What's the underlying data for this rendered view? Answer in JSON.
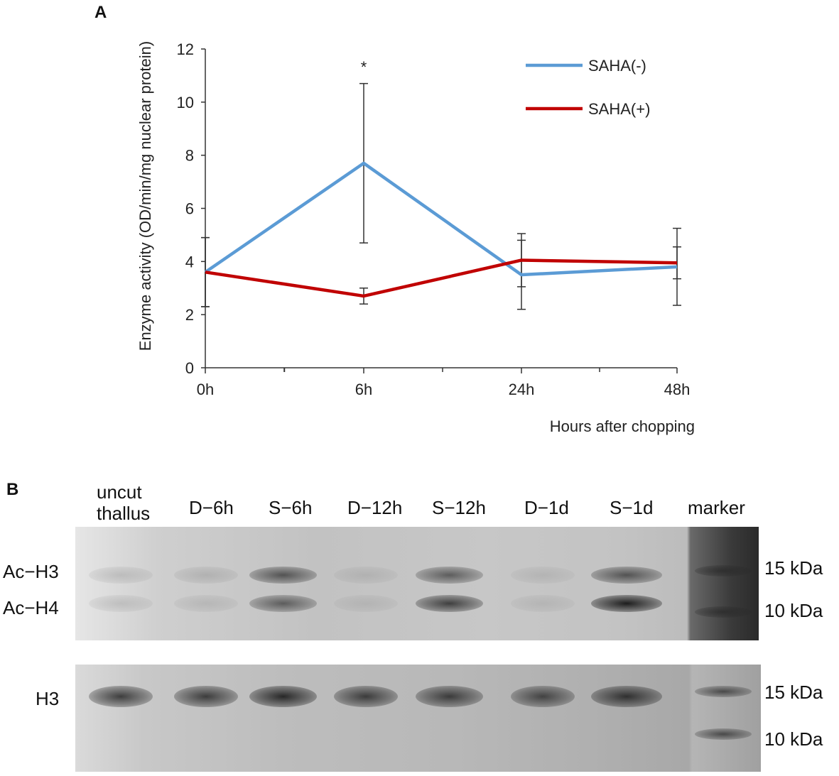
{
  "panel_a": {
    "letter": "A",
    "chart_data": {
      "type": "line",
      "x": [
        "0h",
        "6h",
        "24h",
        "48h"
      ],
      "series": [
        {
          "name": "SAHA(-)",
          "color": "#5b9bd5",
          "values": [
            3.6,
            7.7,
            3.5,
            3.8
          ],
          "error": [
            1.3,
            3.0,
            1.3,
            1.45
          ]
        },
        {
          "name": "SAHA(+)",
          "color": "#c00000",
          "values": [
            3.6,
            2.7,
            4.05,
            3.95
          ],
          "error": [
            1.3,
            0.3,
            1.0,
            0.6
          ]
        }
      ],
      "xlabel": "Hours after chopping",
      "ylabel": "Enzyme activity (OD/min/mg nuclear protein)",
      "ylim": [
        0,
        12
      ],
      "yticks": [
        "0",
        "2",
        "4",
        "6",
        "8",
        "10",
        "12"
      ],
      "annotations": [
        {
          "x": "6h",
          "text": "*"
        }
      ],
      "legend": "top-right",
      "grid": false
    }
  },
  "panel_b": {
    "letter": "B",
    "lanes": [
      "uncut\nthallus",
      "D−6h",
      "S−6h",
      "D−12h",
      "S−12h",
      "D−1d",
      "S−1d",
      "marker"
    ],
    "top_blot": {
      "row_labels": [
        "Ac−H3",
        "Ac−H4"
      ],
      "markers": [
        "15 kDa",
        "10 kDa"
      ],
      "ac_h3_intensity": [
        0.1,
        0.12,
        0.75,
        0.06,
        0.7,
        0.04,
        0.75
      ],
      "ac_h4_intensity": [
        0.08,
        0.06,
        0.7,
        0.03,
        0.85,
        0.03,
        1.0
      ]
    },
    "bottom_blot": {
      "row_label": "H3",
      "markers": [
        "15 kDa",
        "10 kDa"
      ],
      "h3_intensity": [
        0.85,
        0.85,
        0.95,
        0.85,
        0.85,
        0.8,
        0.9
      ]
    }
  }
}
